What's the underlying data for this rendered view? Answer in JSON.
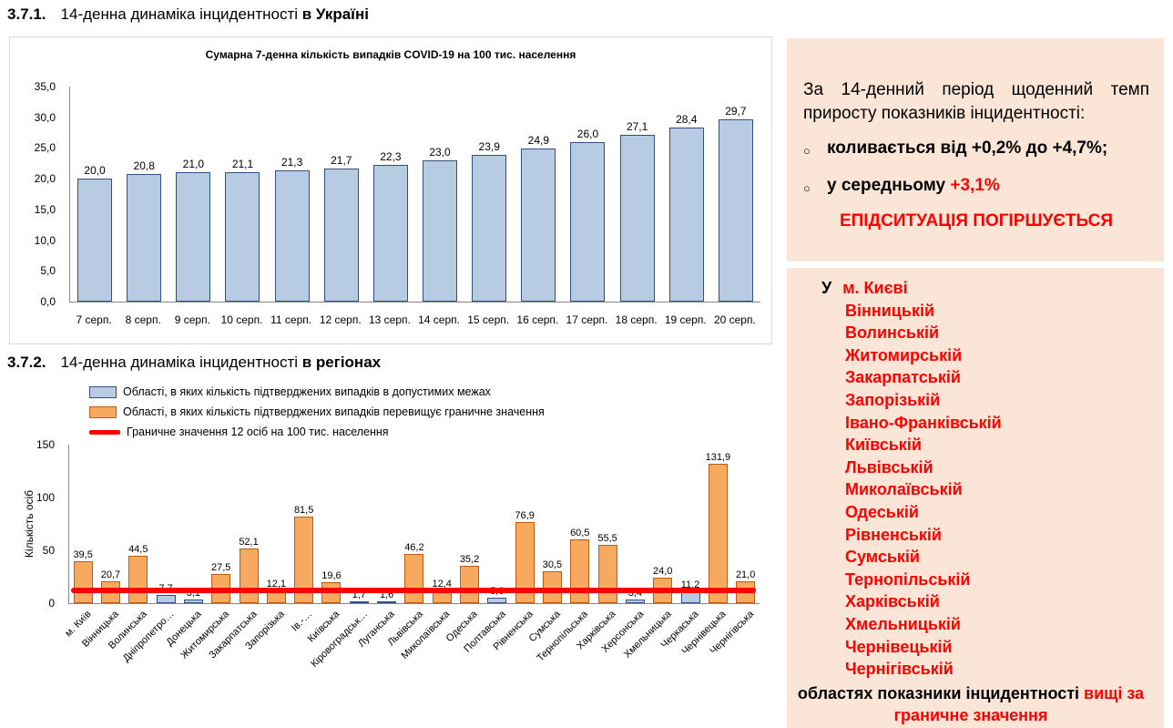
{
  "colors": {
    "blue_fill": "#B7CBE3",
    "blue_border": "#31507F",
    "orange_fill": "#F7A95F",
    "orange_border": "#C05A11",
    "red": "#FF0000",
    "panel_bg": "#FBE5D6"
  },
  "heading1": {
    "number": "3.7.1.",
    "text": "14-денна динаміка інцидентності ",
    "bold": "в Україні"
  },
  "heading2": {
    "number": "3.7.2.",
    "text": "14-денна динаміка інцидентності ",
    "bold": "в регіонах"
  },
  "chart_data": [
    {
      "type": "bar",
      "title": "Сумарна 7-денна кількість випадків COVID-19 на 100 тис. населення",
      "categories": [
        "7 серп.",
        "8 серп.",
        "9 серп.",
        "10 серп.",
        "11 серп.",
        "12 серп.",
        "13 серп.",
        "14 серп.",
        "15 серп.",
        "16 серп.",
        "17 серп.",
        "18 серп.",
        "19 серп.",
        "20 серп."
      ],
      "values": [
        20.0,
        20.8,
        21.0,
        21.1,
        21.3,
        21.7,
        22.3,
        23.0,
        23.9,
        24.9,
        26.0,
        27.1,
        28.4,
        29.7
      ],
      "labels": [
        "20,0",
        "20,8",
        "21,0",
        "21,1",
        "21,3",
        "21,7",
        "22,3",
        "23,0",
        "23,9",
        "24,9",
        "26,0",
        "27,1",
        "28,4",
        "29,7"
      ],
      "ylim": [
        0,
        35
      ],
      "ytick_values": [
        0,
        5,
        10,
        15,
        20,
        25,
        30,
        35
      ],
      "ytick_labels": [
        "0,0",
        "5,0",
        "10,0",
        "15,0",
        "20,0",
        "25,0",
        "30,0",
        "35,0"
      ],
      "xlabel": "",
      "ylabel": "",
      "legend_position": "none",
      "grid": false
    },
    {
      "type": "bar",
      "title": "",
      "categories": [
        "м. Київ",
        "Вінницька",
        "Волинська",
        "Дніпропетро…",
        "Донецька",
        "Житомирська",
        "Закарпатська",
        "Запорізька",
        "Ів.-…",
        "Київська",
        "Кіровоградськ…",
        "Луганська",
        "Львівська",
        "Миколаївська",
        "Одеська",
        "Полтавська",
        "Рівненська",
        "Сумська",
        "Тернопільська",
        "Харківська",
        "Херсонська",
        "Хмельницька",
        "Черкаська",
        "Чернівецька",
        "Чернігівська"
      ],
      "values": [
        39.5,
        20.7,
        44.5,
        7.7,
        3.1,
        27.5,
        52.1,
        12.1,
        81.5,
        19.6,
        1.7,
        1.6,
        46.2,
        12.4,
        35.2,
        5.6,
        76.9,
        30.5,
        60.5,
        55.5,
        3.4,
        24.0,
        11.2,
        131.9,
        21.0
      ],
      "labels": [
        "39,5",
        "20,7",
        "44,5",
        "7,7",
        "3,1",
        "27,5",
        "52,1",
        "12,1",
        "81,5",
        "19,6",
        "1,7",
        "1,6",
        "46,2",
        "12,4",
        "35,2",
        "5,6",
        "76,9",
        "30,5",
        "60,5",
        "55,5",
        "3,4",
        "24,0",
        "11,2",
        "131,9",
        "21,0"
      ],
      "threshold_value": 12,
      "ylim": [
        0,
        150
      ],
      "ytick_values": [
        0,
        50,
        100,
        150
      ],
      "ytick_labels": [
        "0",
        "50",
        "100",
        "150"
      ],
      "xlabel": "",
      "ylabel": "Кількість осіб",
      "legend_position": "top-left",
      "grid": false,
      "legend": [
        {
          "label": "Області, в яких кількість підтверджених випадків в допустимих межах",
          "swatch": "blue"
        },
        {
          "label": "Області, в яких кількість підтверджених випадків перевищує граничне значення",
          "swatch": "orange"
        },
        {
          "label": "Граничне значення 12 осіб на 100 тис. населення",
          "swatch": "line"
        }
      ]
    }
  ],
  "panel1": {
    "intro": "За 14-денний період щоденний темп приросту показників інцидентності:",
    "bullet_marker": "○",
    "bullet1": "коливається від +0,2% до +4,7%;",
    "bullet2_prefix": "у середньому ",
    "bullet2_value": "+3,1%",
    "status": "ЕПІДСИТУАЦІЯ ПОГІРШУЄТЬСЯ"
  },
  "panel2": {
    "prefix": "У",
    "first": "м. Києві",
    "regions": [
      "Вінницькій",
      "Волинській",
      "Житомирській",
      "Закарпатській",
      "Запорізькій",
      "Івано-Франківській",
      "Київській",
      "Львівській",
      "Миколаївській",
      "Одеській",
      "Рівненській",
      "Сумській",
      "Тернопільській",
      "Харківській",
      "Хмельницькій",
      "Чернівецькій",
      "Чернігівській"
    ],
    "footer_black": "областях показники інцидентності ",
    "footer_red": "вищі за граничне значення"
  }
}
